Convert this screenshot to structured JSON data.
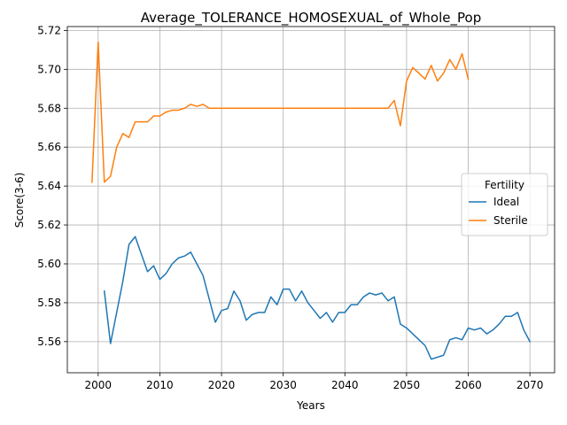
{
  "chart_data": {
    "type": "line",
    "title": "Average_TOLERANCE_HOMOSEXUAL_of_Whole_Pop",
    "xlabel": "Years",
    "ylabel": "Score(3-6)",
    "xlim": [
      1995,
      2074
    ],
    "ylim": [
      5.544,
      5.722
    ],
    "x_ticks": [
      2000,
      2010,
      2020,
      2030,
      2040,
      2050,
      2060,
      2070
    ],
    "y_ticks": [
      5.56,
      5.58,
      5.6,
      5.62,
      5.64,
      5.66,
      5.68,
      5.7,
      5.72
    ],
    "y_tick_labels": [
      "5.56",
      "5.58",
      "5.60",
      "5.62",
      "5.64",
      "5.66",
      "5.68",
      "5.70",
      "5.72"
    ],
    "grid": true,
    "legend": {
      "title": "Fertility",
      "position": "center-right"
    },
    "series": [
      {
        "name": "Ideal",
        "color": "#1f77b4",
        "x": [
          2001,
          2002,
          2003,
          2004,
          2005,
          2006,
          2007,
          2008,
          2009,
          2010,
          2011,
          2012,
          2013,
          2014,
          2015,
          2016,
          2017,
          2018,
          2019,
          2020,
          2021,
          2022,
          2023,
          2024,
          2025,
          2026,
          2027,
          2028,
          2029,
          2030,
          2031,
          2032,
          2033,
          2034,
          2035,
          2036,
          2037,
          2038,
          2039,
          2040,
          2041,
          2042,
          2043,
          2044,
          2045,
          2046,
          2047,
          2048,
          2049,
          2050,
          2051,
          2052,
          2053,
          2054,
          2055,
          2056,
          2057,
          2058,
          2059,
          2060,
          2061,
          2062,
          2063,
          2064,
          2065,
          2066,
          2067,
          2068,
          2069,
          2070
        ],
        "values": [
          5.586,
          5.559,
          5.575,
          5.591,
          5.61,
          5.614,
          5.605,
          5.596,
          5.599,
          5.592,
          5.595,
          5.6,
          5.603,
          5.604,
          5.606,
          5.6,
          5.594,
          5.582,
          5.57,
          5.576,
          5.577,
          5.586,
          5.581,
          5.571,
          5.574,
          5.575,
          5.575,
          5.583,
          5.579,
          5.587,
          5.587,
          5.581,
          5.586,
          5.58,
          5.576,
          5.572,
          5.575,
          5.57,
          5.575,
          5.575,
          5.579,
          5.579,
          5.583,
          5.585,
          5.584,
          5.585,
          5.581,
          5.583,
          5.569,
          5.567,
          5.564,
          5.561,
          5.558,
          5.551,
          5.552,
          5.553,
          5.561,
          5.562,
          5.561,
          5.567,
          5.566,
          5.567,
          5.564,
          5.566,
          5.569,
          5.573,
          5.573,
          5.575,
          5.566,
          5.56
        ]
      },
      {
        "name": "Sterile",
        "color": "#ff7f0e",
        "x": [
          1999,
          2000,
          2001,
          2002,
          2003,
          2004,
          2005,
          2006,
          2007,
          2008,
          2009,
          2010,
          2011,
          2012,
          2013,
          2014,
          2015,
          2016,
          2017,
          2018,
          2019,
          2020,
          2021,
          2022,
          2023,
          2024,
          2025,
          2026,
          2027,
          2028,
          2029,
          2030,
          2031,
          2032,
          2033,
          2034,
          2035,
          2036,
          2037,
          2038,
          2039,
          2040,
          2041,
          2042,
          2043,
          2044,
          2045,
          2046,
          2047,
          2048,
          2049,
          2050,
          2051,
          2052,
          2053,
          2054,
          2055,
          2056,
          2057,
          2058,
          2059,
          2060
        ],
        "values": [
          5.642,
          5.714,
          5.642,
          5.645,
          5.66,
          5.667,
          5.665,
          5.673,
          5.673,
          5.673,
          5.676,
          5.676,
          5.678,
          5.679,
          5.679,
          5.68,
          5.682,
          5.681,
          5.682,
          5.68,
          5.68,
          5.68,
          5.68,
          5.68,
          5.68,
          5.68,
          5.68,
          5.68,
          5.68,
          5.68,
          5.68,
          5.68,
          5.68,
          5.68,
          5.68,
          5.68,
          5.68,
          5.68,
          5.68,
          5.68,
          5.68,
          5.68,
          5.68,
          5.68,
          5.68,
          5.68,
          5.68,
          5.68,
          5.68,
          5.684,
          5.671,
          5.694,
          5.701,
          5.698,
          5.695,
          5.702,
          5.694,
          5.698,
          5.705,
          5.7,
          5.708,
          5.695
        ]
      }
    ]
  }
}
